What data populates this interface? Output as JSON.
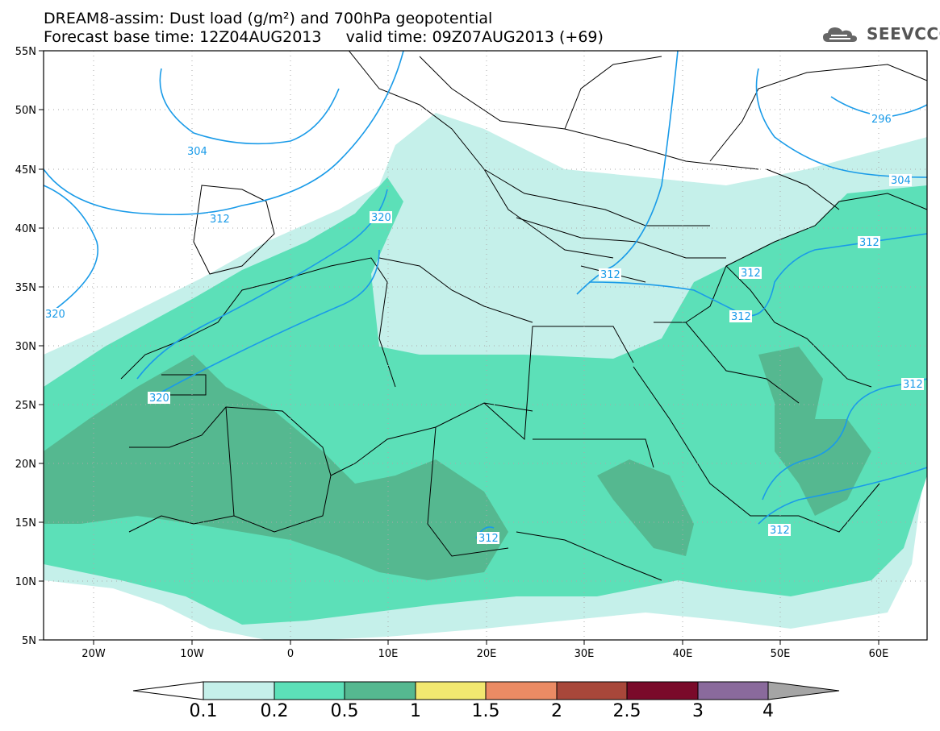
{
  "title": {
    "line1": "DREAM8-assim: Dust load (g/m²) and 700hPa geopotential",
    "line2": "Forecast base time: 12Z04AUG2013     valid time: 09Z07AUG2013 (+69)"
  },
  "logo": {
    "text": "SEEVCCC",
    "icon": "cloud-logo-icon"
  },
  "axes": {
    "lat_labels": [
      "55N",
      "50N",
      "45N",
      "40N",
      "35N",
      "30N",
      "25N",
      "20N",
      "15N",
      "10N",
      "5N"
    ],
    "lon_labels": [
      "20W",
      "10W",
      "0",
      "10E",
      "20E",
      "30E",
      "40E",
      "50E",
      "60E"
    ],
    "lat_range": [
      5,
      55
    ],
    "lon_range": [
      -25,
      65
    ]
  },
  "contour_labels": [
    "304",
    "312",
    "320",
    "320",
    "320",
    "312",
    "312",
    "312",
    "312",
    "312",
    "296",
    "304",
    "312",
    "312"
  ],
  "colorbar": {
    "ticks": [
      "0.1",
      "0.2",
      "0.5",
      "1",
      "1.5",
      "2",
      "2.5",
      "3",
      "4"
    ],
    "colors": [
      "#c5f0ea",
      "#5ce0b8",
      "#55b890",
      "#f2e870",
      "#eb8b64",
      "#a8473a",
      "#7a0a2a",
      "#8a6a9c"
    ],
    "below_color": "#ffffff",
    "above_color": "#a5a5a5"
  },
  "colors": {
    "contour": "#1a9be8",
    "border": "#000000",
    "grid": "#aaaaaa"
  }
}
